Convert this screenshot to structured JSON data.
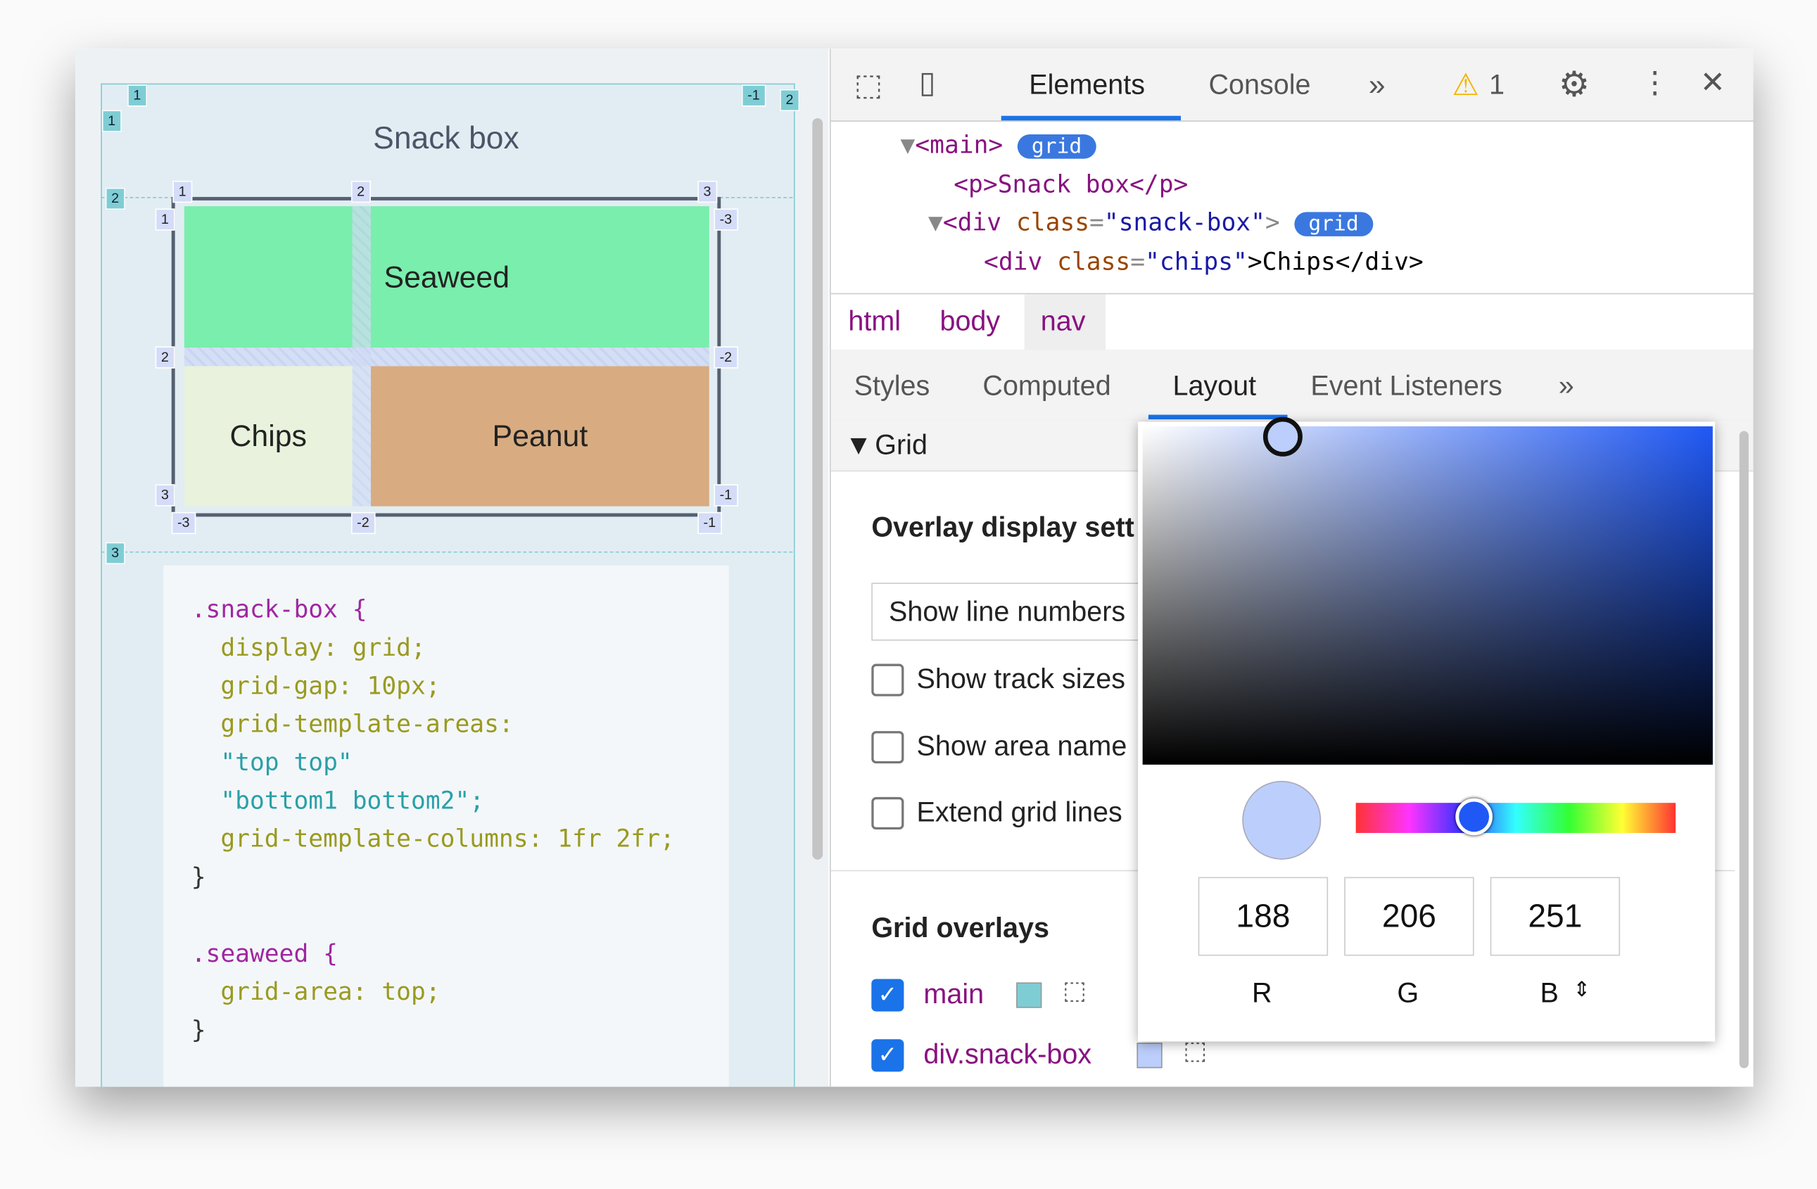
{
  "page": {
    "title": "Snack box",
    "cells": {
      "seaweed": "Seaweed",
      "chips": "Chips",
      "peanut": "Peanut"
    },
    "badges": {
      "outer_top_1": "1",
      "outer_left_1": "1",
      "outer_top_neg1": "-1",
      "outer_right_2": "2",
      "outer_left_2": "2",
      "outer_left_3": "3",
      "col1": "1",
      "col2": "2",
      "col3": "3",
      "row1": "1",
      "row2": "2",
      "row3": "3",
      "rneg3": "-3",
      "rneg2": "-2",
      "rneg1": "-1",
      "cneg3": "-3",
      "cneg2": "-2",
      "cneg1": "-1"
    }
  },
  "code": {
    "lines": [
      ".snack-box {",
      "  display: grid;",
      "  grid-gap: 10px;",
      "  grid-template-areas:",
      "  \"top top\"",
      "  \"bottom1 bottom2\";",
      "  grid-template-columns: 1fr 2fr;",
      "}",
      "",
      ".seaweed {",
      "  grid-area: top;",
      "}"
    ]
  },
  "devtools": {
    "tabs": [
      "Elements",
      "Console"
    ],
    "active_tab": "Elements",
    "warning_count": "1",
    "dom": {
      "l1_tag": "<main>",
      "l1_badge": "grid",
      "l2": "<p>Snack box</p>",
      "l3_tag": "<div ",
      "l3_attr": "class",
      "l3_val": "\"snack-box\"",
      "l3_badge": "grid",
      "l4_open": "<div ",
      "l4_attr": "class",
      "l4_val": "\"chips\"",
      "l4_text": ">Chips</div>"
    },
    "breadcrumbs": [
      "html",
      "body",
      "nav"
    ],
    "subtabs": [
      "Styles",
      "Computed",
      "Layout",
      "Event Listeners"
    ],
    "active_subtab": "Layout",
    "grid_section": "Grid",
    "overlay_heading": "Overlay display sett",
    "select_value": "Show line numbers",
    "checkboxes": [
      {
        "label": "Show track sizes",
        "checked": false
      },
      {
        "label": "Show area name",
        "checked": false
      },
      {
        "label": "Extend grid lines",
        "checked": false
      }
    ],
    "grid_overlays_heading": "Grid overlays",
    "overlays": [
      {
        "label": "main",
        "checked": true,
        "color": "#7fcdd4"
      },
      {
        "label": "div.snack-box",
        "checked": true,
        "color": "#bccefb"
      }
    ],
    "picker": {
      "r": "188",
      "g": "206",
      "b": "251",
      "r_label": "R",
      "g_label": "G",
      "b_label": "B",
      "hue_fraction": 0.37,
      "swatch": "#bccefb"
    }
  }
}
